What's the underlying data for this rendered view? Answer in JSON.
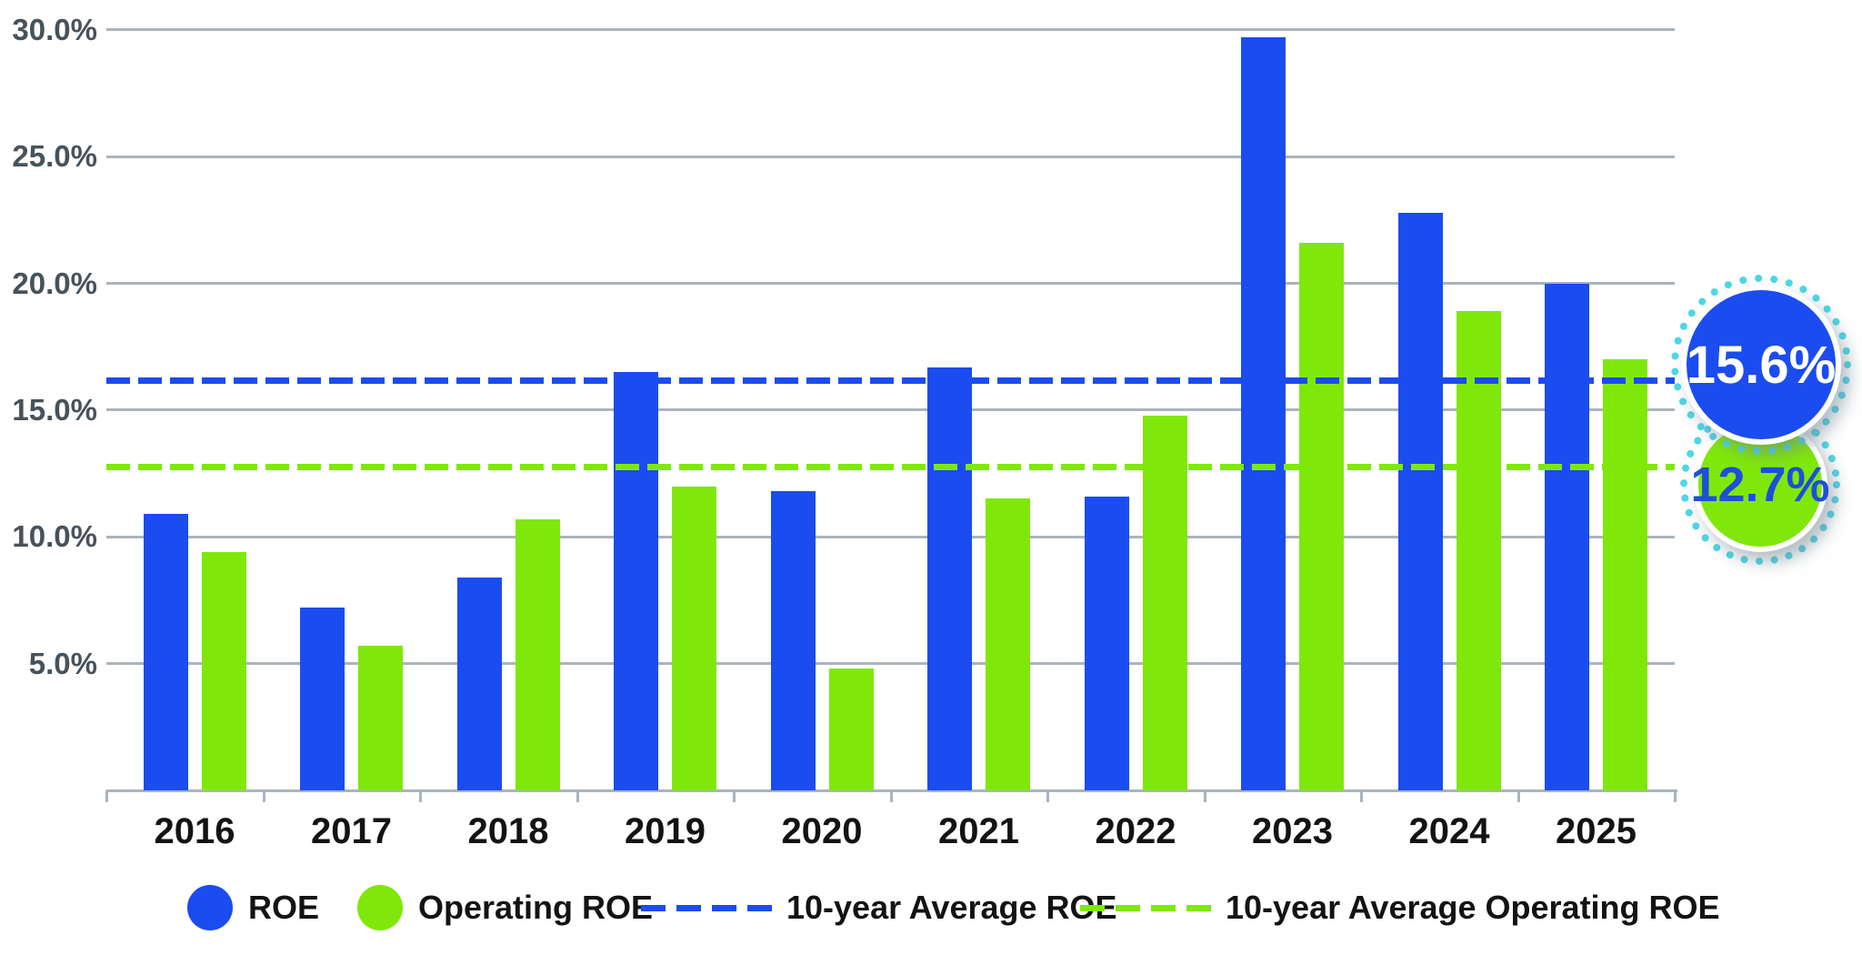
{
  "chart_data": {
    "type": "bar",
    "title": "",
    "categories": [
      "2016",
      "2017",
      "2018",
      "2019",
      "2020",
      "2021",
      "2022",
      "2023",
      "2024",
      "2025"
    ],
    "series": [
      {
        "name": "ROE",
        "color": "#1B4CF0",
        "values": [
          10.9,
          7.2,
          8.4,
          16.5,
          11.8,
          16.7,
          11.6,
          29.7,
          22.8,
          20.0
        ]
      },
      {
        "name": "Operating ROE",
        "color": "#7FE80A",
        "values": [
          9.4,
          5.7,
          10.7,
          12.0,
          4.8,
          11.5,
          14.8,
          21.6,
          18.9,
          17.0
        ]
      }
    ],
    "average_lines": [
      {
        "name": "10-year Average ROE",
        "label": "15.6%",
        "value": 15.6,
        "line_pct": 16.15,
        "color": "#1B4CF0"
      },
      {
        "name": "10-year Average Operating ROE",
        "label": "12.7%",
        "value": 12.7,
        "line_pct": 12.75,
        "color": "#7FE80A"
      }
    ],
    "y_axis": {
      "ticks": [
        {
          "label": "30.0%",
          "value": 30
        },
        {
          "label": "25.0%",
          "value": 25
        },
        {
          "label": "20.0%",
          "value": 20
        },
        {
          "label": "15.0%",
          "value": 15
        },
        {
          "label": "10.0%",
          "value": 10
        },
        {
          "label": "5.0%",
          "value": 5
        }
      ]
    },
    "ylim": [
      0,
      31.2
    ],
    "grid": "horizontal-only",
    "legend_position": "bottom"
  },
  "legend": {
    "items": [
      {
        "label": "ROE",
        "marker": "circle",
        "color": "#1B4CF0"
      },
      {
        "label": "Operating ROE",
        "marker": "circle",
        "color": "#7FE80A"
      },
      {
        "label": "10-year Average ROE",
        "marker": "dashed-line",
        "color": "#1B4CF0"
      },
      {
        "label": "10-year Average Operating ROE",
        "marker": "dashed-line",
        "color": "#7FE80A"
      }
    ]
  },
  "colors": {
    "roe_blue": "#1B4CF0",
    "operating_green": "#7FE80A",
    "gridline_gray": "#ABB4BC",
    "y_label_gray": "#47525A",
    "axis_text_black": "#131313",
    "callout_dot_ring_cyan": "#4DD8E6",
    "callout_green_text_blue": "#1D50D8",
    "background": "#FFFFFF"
  }
}
